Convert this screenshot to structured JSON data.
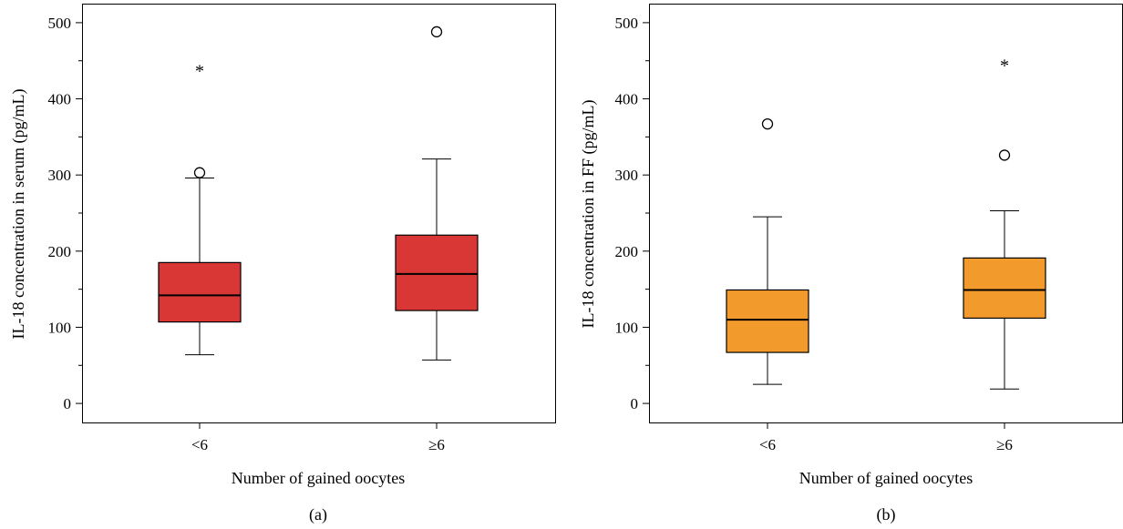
{
  "chart_data": [
    {
      "type": "box",
      "panel_label": "(a)",
      "xlabel": "Number of gained oocytes",
      "ylabel": "IL-18 concentration in serum (pg/mL)",
      "ylim": [
        -25,
        525
      ],
      "yticks": [
        0,
        100,
        200,
        300,
        400,
        500
      ],
      "ytick_labels": [
        "0",
        "100",
        "200",
        "300",
        "400",
        "500"
      ],
      "box_color": "#d93636",
      "categories": [
        "<6",
        "≥6"
      ],
      "boxes": [
        {
          "category": "<6",
          "whisker_low": 64,
          "q1": 107,
          "median": 142,
          "q3": 185,
          "whisker_high": 296,
          "outliers": [
            {
              "value": 303,
              "marker": "circle"
            },
            {
              "value": 441,
              "marker": "star"
            }
          ]
        },
        {
          "category": "≥6",
          "whisker_low": 57,
          "q1": 122,
          "median": 170,
          "q3": 221,
          "whisker_high": 321,
          "outliers": [
            {
              "value": 488,
              "marker": "circle"
            }
          ]
        }
      ]
    },
    {
      "type": "box",
      "panel_label": "(b)",
      "xlabel": "Number of gained oocytes",
      "ylabel": "IL-18 concentration in FF (pg/mL)",
      "ylim": [
        -25,
        525
      ],
      "yticks": [
        0,
        100,
        200,
        300,
        400,
        500
      ],
      "ytick_labels": [
        "0",
        "100",
        "200",
        "300",
        "400",
        "500"
      ],
      "box_color": "#f39a2c",
      "categories": [
        "<6",
        "≥6"
      ],
      "boxes": [
        {
          "category": "<6",
          "whisker_low": 25,
          "q1": 67,
          "median": 110,
          "q3": 149,
          "whisker_high": 245,
          "outliers": [
            {
              "value": 367,
              "marker": "circle"
            }
          ]
        },
        {
          "category": "≥6",
          "whisker_low": 19,
          "q1": 112,
          "median": 149,
          "q3": 191,
          "whisker_high": 253,
          "outliers": [
            {
              "value": 326,
              "marker": "circle"
            },
            {
              "value": 448,
              "marker": "star"
            }
          ]
        }
      ]
    }
  ]
}
